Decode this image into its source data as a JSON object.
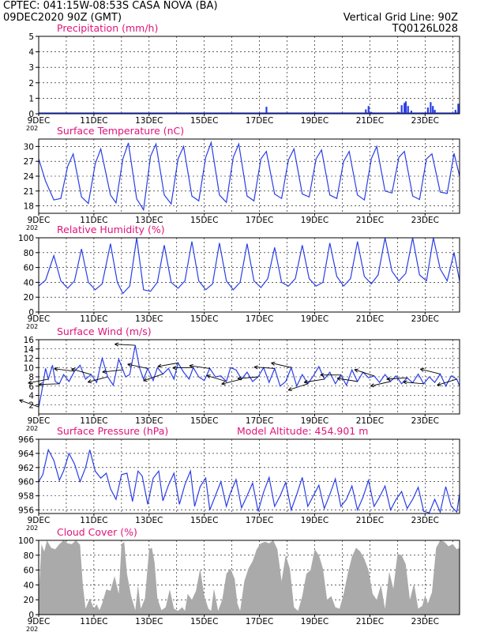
{
  "header": {
    "line1_left": "CPTEC:   041:15W-08:53S   CASA NOVA (BA)",
    "line2_left": "09DEC2020 90Z (GMT)",
    "right1": "Vertical Grid Line: 90Z",
    "right2": "TQ0126L028",
    "year_stub": "202"
  },
  "colors": {
    "header": "#e87a1c",
    "title": "#e0147a",
    "series": "#2a3ee6",
    "bars": "#aaaaaa",
    "arrow": "#000000",
    "grid": "#000000"
  },
  "x_axis": {
    "labels": [
      "9DEC",
      "11DEC",
      "13DEC",
      "15DEC",
      "17DEC",
      "19DEC",
      "21DEC",
      "23DEC"
    ],
    "label_days": [
      9,
      11,
      13,
      15,
      17,
      19,
      21,
      23
    ],
    "range_days": [
      9,
      24.25
    ]
  },
  "chart_data": [
    {
      "id": "precip",
      "type": "bar",
      "title": "Precipitation (mm/h)",
      "ylim": [
        0,
        5
      ],
      "yticks": [
        0,
        1,
        2,
        3,
        4,
        5
      ],
      "points": [
        [
          17.25,
          0.45
        ],
        [
          20.85,
          0.28
        ],
        [
          20.95,
          0.5
        ],
        [
          21.05,
          0.12
        ],
        [
          21.15,
          0.08
        ],
        [
          22.05,
          0.12
        ],
        [
          22.15,
          0.55
        ],
        [
          22.25,
          0.7
        ],
        [
          22.3,
          0.8
        ],
        [
          22.38,
          0.5
        ],
        [
          22.5,
          0.2
        ],
        [
          23.1,
          0.4
        ],
        [
          23.2,
          0.75
        ],
        [
          23.28,
          0.5
        ],
        [
          23.35,
          0.25
        ],
        [
          24.1,
          0.25
        ],
        [
          24.2,
          0.65
        ]
      ],
      "baseline_value": 0.04
    },
    {
      "id": "temp",
      "type": "line",
      "title": "Surface Temperature (nC)",
      "ylim": [
        16.5,
        31.5
      ],
      "yticks": [
        18,
        21,
        24,
        27,
        30
      ],
      "x": [
        9,
        9.25,
        9.55,
        9.8,
        10.05,
        10.25,
        10.55,
        10.8,
        11.05,
        11.25,
        11.6,
        11.8,
        12.05,
        12.25,
        12.55,
        12.8,
        13.05,
        13.25,
        13.55,
        13.8,
        14.05,
        14.25,
        14.55,
        14.8,
        15.05,
        15.25,
        15.55,
        15.8,
        16.05,
        16.25,
        16.55,
        16.8,
        17.05,
        17.25,
        17.55,
        17.8,
        18.05,
        18.25,
        18.55,
        18.8,
        19.05,
        19.25,
        19.55,
        19.8,
        20.05,
        20.25,
        20.55,
        20.8,
        21.05,
        21.25,
        21.55,
        21.8,
        22.05,
        22.25,
        22.55,
        22.8,
        23.05,
        23.25,
        23.55,
        23.8,
        24.05,
        24.25
      ],
      "y": [
        27.5,
        23,
        19.2,
        19.5,
        26,
        28.5,
        19.8,
        18.5,
        26.5,
        29.5,
        20.2,
        18.6,
        27.5,
        30.7,
        19.4,
        17.2,
        28,
        30.5,
        20.2,
        18.4,
        27.5,
        30,
        20,
        19,
        27.8,
        30.8,
        20.2,
        18.7,
        27.8,
        30.5,
        20,
        19,
        27.5,
        29,
        20.4,
        19.5,
        27.3,
        29.5,
        20.4,
        19.8,
        27.5,
        29.3,
        20.2,
        19.5,
        27,
        29,
        20.2,
        19.2,
        27.5,
        30,
        21,
        20.6,
        27.8,
        29,
        20,
        19.3,
        27.5,
        28.5,
        20.8,
        20.5,
        28.6,
        24
      ]
    },
    {
      "id": "rh",
      "type": "line",
      "title": "Relative Humidity (%)",
      "ylim": [
        0,
        100
      ],
      "yticks": [
        0,
        20,
        40,
        60,
        80,
        100
      ],
      "x": [
        9,
        9.25,
        9.55,
        9.8,
        10.05,
        10.3,
        10.55,
        10.8,
        11.05,
        11.3,
        11.6,
        11.85,
        12.05,
        12.3,
        12.55,
        12.8,
        13.05,
        13.3,
        13.55,
        13.8,
        14.05,
        14.3,
        14.55,
        14.8,
        15.05,
        15.3,
        15.55,
        15.8,
        16.05,
        16.3,
        16.55,
        16.8,
        17.05,
        17.3,
        17.55,
        17.8,
        18.05,
        18.3,
        18.55,
        18.8,
        19.05,
        19.3,
        19.55,
        19.8,
        20.05,
        20.3,
        20.55,
        20.8,
        21.05,
        21.3,
        21.55,
        21.8,
        22.05,
        22.3,
        22.55,
        22.8,
        23.05,
        23.3,
        23.55,
        23.8,
        24.05,
        24.25
      ],
      "y": [
        35,
        43,
        76,
        42,
        32,
        42,
        85,
        40,
        30,
        38,
        92,
        40,
        25,
        35,
        100,
        30,
        28,
        40,
        90,
        40,
        32,
        42,
        95,
        42,
        30,
        38,
        93,
        42,
        30,
        40,
        92,
        42,
        33,
        45,
        87,
        40,
        35,
        45,
        90,
        45,
        35,
        40,
        93,
        48,
        35,
        45,
        95,
        48,
        38,
        50,
        100,
        55,
        42,
        52,
        100,
        50,
        42,
        100,
        58,
        42,
        80,
        42
      ]
    },
    {
      "id": "wind",
      "type": "line",
      "title": "Surface Wind (m/s)",
      "ylim": [
        0,
        16
      ],
      "yticks": [
        2,
        4,
        6,
        8,
        10,
        12,
        14,
        16
      ],
      "x": [
        9,
        9.1,
        9.25,
        9.35,
        9.5,
        9.6,
        9.75,
        9.9,
        10.1,
        10.3,
        10.5,
        10.7,
        10.9,
        11.1,
        11.3,
        11.5,
        11.7,
        11.9,
        12.05,
        12.15,
        12.3,
        12.5,
        12.65,
        12.8,
        12.95,
        13.15,
        13.3,
        13.5,
        13.7,
        13.9,
        14.05,
        14.25,
        14.45,
        14.6,
        14.8,
        15,
        15.2,
        15.4,
        15.6,
        15.8,
        15.95,
        16.15,
        16.35,
        16.55,
        16.75,
        16.95,
        17.15,
        17.35,
        17.55,
        17.75,
        17.95,
        18.15,
        18.35,
        18.55,
        18.75,
        18.95,
        19.15,
        19.35,
        19.55,
        19.75,
        19.95,
        20.15,
        20.35,
        20.55,
        20.75,
        20.95,
        21.15,
        21.35,
        21.55,
        21.75,
        21.95,
        22.15,
        22.35,
        22.55,
        22.75,
        22.95,
        23.15,
        23.35,
        23.55,
        23.75,
        23.95,
        24.15,
        24.25
      ],
      "y": [
        1.5,
        4.5,
        9.8,
        7.5,
        10.5,
        7,
        6.5,
        8.5,
        7,
        9.2,
        10.5,
        7.5,
        8.5,
        6.8,
        12,
        8,
        6.2,
        11.8,
        9.5,
        8,
        8.5,
        14.8,
        10,
        7.5,
        9.8,
        7.2,
        10,
        8.6,
        9.8,
        7.5,
        11,
        9,
        7.5,
        10,
        8,
        7.2,
        9.8,
        8,
        8.2,
        7,
        10,
        9.5,
        7.5,
        9,
        7,
        8,
        10,
        6.8,
        9.8,
        6,
        7,
        10,
        6,
        8.5,
        6.5,
        8.2,
        10.2,
        7.5,
        9,
        6.5,
        8.4,
        6.2,
        9.5,
        7,
        9,
        7.8,
        8.2,
        6.8,
        8.5,
        7,
        8.2,
        6.5,
        7.8,
        6.7,
        8.6,
        6.5,
        8,
        6.8,
        8.6,
        6,
        8.2,
        7.5,
        6
      ]
    },
    {
      "id": "pressure",
      "type": "line",
      "title": "Surface Pressure (hPa)",
      "annotation": "Model Altitude: 454.901  m",
      "ylim": [
        955.5,
        966
      ],
      "yticks": [
        956,
        958,
        960,
        962,
        964,
        966
      ],
      "x": [
        9,
        9.15,
        9.35,
        9.55,
        9.75,
        9.9,
        10.1,
        10.3,
        10.5,
        10.7,
        10.85,
        11.05,
        11.25,
        11.45,
        11.6,
        11.8,
        12,
        12.2,
        12.4,
        12.6,
        12.75,
        12.95,
        13.15,
        13.35,
        13.5,
        13.7,
        13.9,
        14.1,
        14.3,
        14.5,
        14.65,
        14.85,
        15.05,
        15.2,
        15.4,
        15.6,
        15.8,
        15.95,
        16.15,
        16.35,
        16.55,
        16.75,
        16.95,
        17.15,
        17.35,
        17.55,
        17.75,
        17.95,
        18.15,
        18.35,
        18.55,
        18.75,
        18.95,
        19.15,
        19.35,
        19.55,
        19.75,
        19.95,
        20.15,
        20.35,
        20.55,
        20.75,
        20.95,
        21.15,
        21.35,
        21.55,
        21.75,
        21.95,
        22.15,
        22.35,
        22.55,
        22.75,
        22.95,
        23.15,
        23.35,
        23.55,
        23.75,
        23.95,
        24.15,
        24.25
      ],
      "y": [
        960,
        961,
        964.5,
        963,
        960.2,
        961.5,
        964,
        962.5,
        960,
        962,
        964.5,
        961.5,
        960.5,
        961.2,
        959,
        957.5,
        961,
        961.2,
        957.2,
        961.5,
        960.8,
        956.8,
        960.5,
        961.5,
        957.3,
        959.5,
        961.2,
        956.8,
        959.6,
        961.5,
        956.5,
        959.3,
        960.5,
        956,
        958,
        960,
        956.5,
        958.4,
        960.3,
        956.3,
        958,
        959.8,
        955.8,
        958.5,
        960.6,
        956.5,
        958,
        959.9,
        956,
        958.2,
        960.6,
        956.5,
        958,
        959.5,
        956.2,
        958.2,
        960.4,
        956.5,
        957.5,
        959.4,
        956,
        957.8,
        960.2,
        956.5,
        957.8,
        959.4,
        956,
        957.5,
        958.6,
        956.2,
        957.5,
        959.2,
        955.8,
        955.6,
        957.5,
        955.7,
        959.3,
        956.5,
        955.7,
        958.3
      ]
    },
    {
      "id": "cloud",
      "type": "area",
      "title": "Cloud Cover (%)",
      "ylim": [
        0,
        100
      ],
      "yticks": [
        0,
        20,
        40,
        60,
        80,
        100
      ],
      "x": [
        9,
        9.1,
        9.2,
        9.3,
        9.45,
        9.6,
        9.75,
        9.9,
        10.05,
        10.2,
        10.35,
        10.5,
        10.6,
        10.7,
        10.85,
        11,
        11.1,
        11.2,
        11.3,
        11.45,
        11.6,
        11.75,
        11.9,
        12,
        12.1,
        12.2,
        12.35,
        12.5,
        12.6,
        12.7,
        12.85,
        13,
        13.1,
        13.2,
        13.3,
        13.45,
        13.6,
        13.75,
        13.9,
        14.05,
        14.2,
        14.3,
        14.4,
        14.55,
        14.7,
        14.85,
        15,
        15.15,
        15.25,
        15.35,
        15.5,
        15.65,
        15.8,
        15.95,
        16.1,
        16.2,
        16.3,
        16.45,
        16.6,
        16.75,
        16.9,
        17.05,
        17.2,
        17.35,
        17.5,
        17.65,
        17.8,
        17.95,
        18.1,
        18.25,
        18.4,
        18.55,
        18.7,
        18.85,
        19,
        19.15,
        19.3,
        19.45,
        19.6,
        19.75,
        19.9,
        20.05,
        20.2,
        20.35,
        20.5,
        20.65,
        20.8,
        20.95,
        21.1,
        21.25,
        21.4,
        21.55,
        21.7,
        21.85,
        22,
        22.15,
        22.3,
        22.45,
        22.6,
        22.75,
        22.9,
        23,
        23.1,
        23.25,
        23.4,
        23.55,
        23.7,
        23.85,
        24,
        24.15,
        24.25
      ],
      "y": [
        25,
        95,
        85,
        100,
        90,
        88,
        95,
        100,
        96,
        95,
        100,
        94,
        40,
        8,
        22,
        8,
        14,
        6,
        15,
        34,
        32,
        52,
        28,
        95,
        98,
        55,
        25,
        6,
        40,
        8,
        22,
        88,
        90,
        70,
        22,
        6,
        10,
        34,
        8,
        5,
        10,
        5,
        28,
        20,
        32,
        62,
        25,
        8,
        5,
        35,
        5,
        20,
        55,
        62,
        48,
        15,
        5,
        45,
        62,
        72,
        88,
        96,
        98,
        96,
        100,
        88,
        45,
        80,
        62,
        10,
        5,
        25,
        55,
        60,
        88,
        80,
        62,
        20,
        25,
        10,
        8,
        28,
        55,
        78,
        90,
        85,
        75,
        60,
        28,
        20,
        40,
        8,
        58,
        35,
        82,
        80,
        68,
        20,
        42,
        8,
        12,
        26,
        15,
        30,
        90,
        100,
        98,
        92,
        95,
        88,
        90
      ]
    }
  ]
}
